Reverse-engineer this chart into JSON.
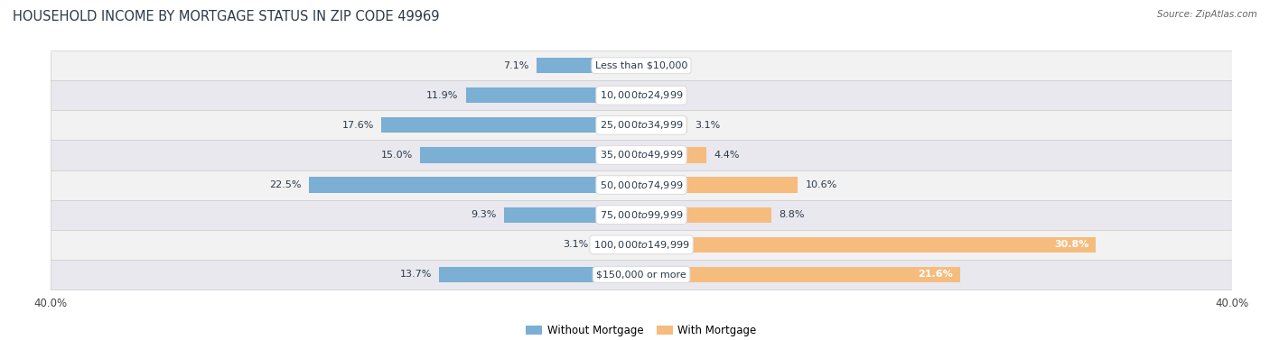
{
  "title": "HOUSEHOLD INCOME BY MORTGAGE STATUS IN ZIP CODE 49969",
  "source": "Source: ZipAtlas.com",
  "categories": [
    "Less than $10,000",
    "$10,000 to $24,999",
    "$25,000 to $34,999",
    "$35,000 to $49,999",
    "$50,000 to $74,999",
    "$75,000 to $99,999",
    "$100,000 to $149,999",
    "$150,000 or more"
  ],
  "without_mortgage": [
    7.1,
    11.9,
    17.6,
    15.0,
    22.5,
    9.3,
    3.1,
    13.7
  ],
  "with_mortgage": [
    0.0,
    0.0,
    3.1,
    4.4,
    10.6,
    8.8,
    30.8,
    21.6
  ],
  "color_without": "#7BAFD4",
  "color_with": "#F5BC7E",
  "axis_limit": 40.0,
  "bg_color": "#FFFFFF",
  "row_bg_even": "#F2F2F2",
  "row_bg_odd": "#E8E8EE",
  "legend_without": "Without Mortgage",
  "legend_with": "With Mortgage"
}
